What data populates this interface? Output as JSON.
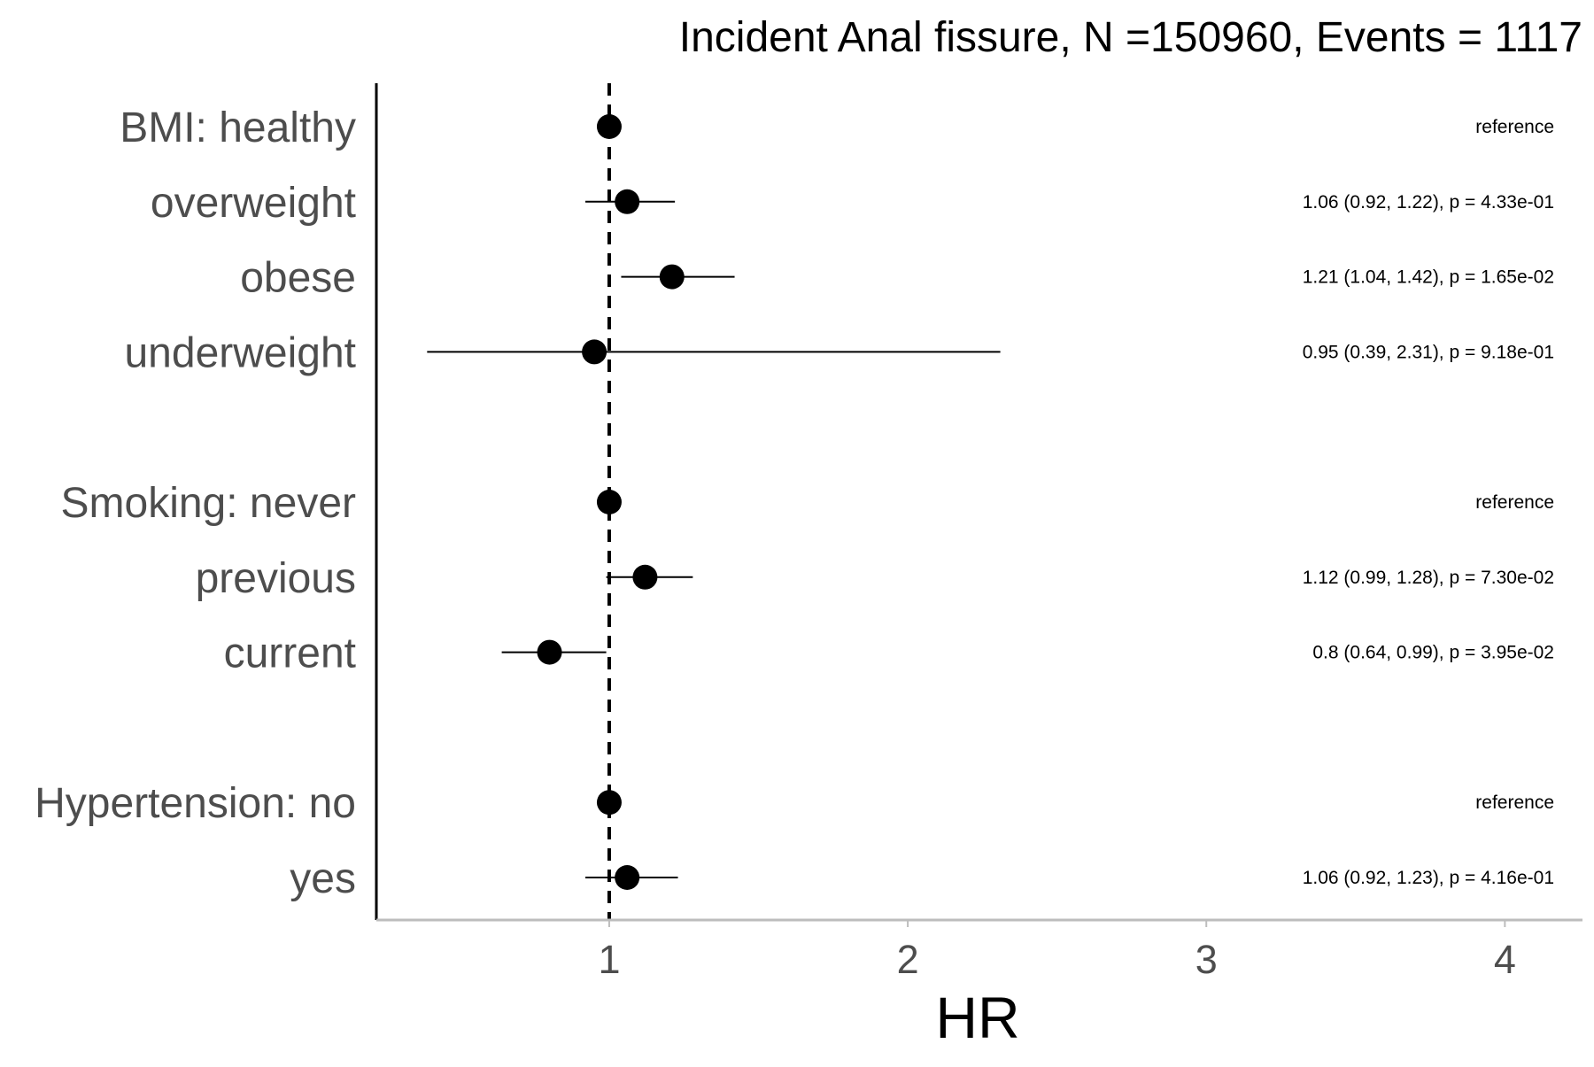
{
  "chart_data": {
    "type": "forest",
    "title": "Incident Anal fissure, N =150960, Events = 1117",
    "xlabel": "HR",
    "ylabel": "",
    "xlim": [
      0.22,
      4.26
    ],
    "xticks": [
      1,
      2,
      3,
      4
    ],
    "reference_line": 1,
    "grid": false,
    "rows": [
      {
        "label": "BMI: healthy",
        "hr": 1.0,
        "lo": null,
        "hi": null,
        "text": "reference"
      },
      {
        "label": "overweight",
        "hr": 1.06,
        "lo": 0.92,
        "hi": 1.22,
        "text": "1.06 (0.92, 1.22), p = 4.33e-01"
      },
      {
        "label": "obese",
        "hr": 1.21,
        "lo": 1.04,
        "hi": 1.42,
        "text": "1.21 (1.04, 1.42), p = 1.65e-02"
      },
      {
        "label": "underweight",
        "hr": 0.95,
        "lo": 0.39,
        "hi": 2.31,
        "text": "0.95 (0.39, 2.31), p = 9.18e-01"
      },
      {
        "label": "",
        "hr": null,
        "lo": null,
        "hi": null,
        "text": ""
      },
      {
        "label": "Smoking: never",
        "hr": 1.0,
        "lo": null,
        "hi": null,
        "text": "reference"
      },
      {
        "label": "previous",
        "hr": 1.12,
        "lo": 0.99,
        "hi": 1.28,
        "text": "1.12 (0.99, 1.28), p = 7.30e-02"
      },
      {
        "label": "current",
        "hr": 0.8,
        "lo": 0.64,
        "hi": 0.99,
        "text": "0.8 (0.64, 0.99), p = 3.95e-02"
      },
      {
        "label": "",
        "hr": null,
        "lo": null,
        "hi": null,
        "text": ""
      },
      {
        "label": "Hypertension: no",
        "hr": 1.0,
        "lo": null,
        "hi": null,
        "text": "reference"
      },
      {
        "label": "yes",
        "hr": 1.06,
        "lo": 0.92,
        "hi": 1.23,
        "text": "1.06 (0.92, 1.23), p = 4.16e-01"
      }
    ],
    "colors": {
      "point": "#000000",
      "ci": "#000000",
      "ref_line": "#000000",
      "y_axis": "#000000",
      "x_axis": "#bdbdbd",
      "labels": "#4d4d4d"
    }
  }
}
